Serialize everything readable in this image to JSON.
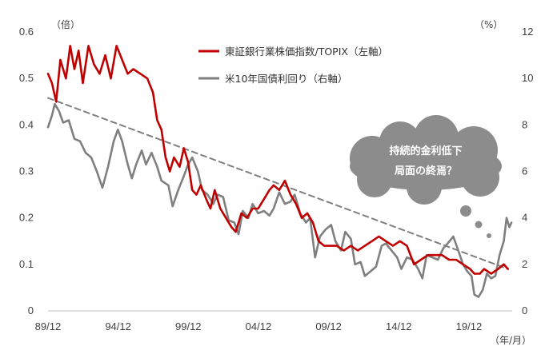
{
  "chart_data": {
    "type": "line",
    "left_axis_unit": "（倍）",
    "right_axis_unit": "（%）",
    "x_unit": "（年/月）",
    "x_ticks": [
      "89/12",
      "94/12",
      "99/12",
      "04/12",
      "09/12",
      "14/12",
      "19/12"
    ],
    "left_ticks": [
      "0",
      "0.1",
      "0.2",
      "0.3",
      "0.4",
      "0.5",
      "0.6"
    ],
    "right_ticks": [
      "0",
      "2",
      "4",
      "6",
      "8",
      "10",
      "12"
    ],
    "ylim_left": [
      0,
      0.6
    ],
    "ylim_right": [
      0,
      12
    ],
    "xlim": [
      1989.92,
      2023.0
    ],
    "series": [
      {
        "name": "東証銀行業株価指数/TOPIX（左軸）",
        "axis": "left",
        "color": "#c00000",
        "points": [
          [
            1989.92,
            0.51
          ],
          [
            1990.2,
            0.49
          ],
          [
            1990.5,
            0.45
          ],
          [
            1990.8,
            0.54
          ],
          [
            1991.2,
            0.5
          ],
          [
            1991.5,
            0.57
          ],
          [
            1991.8,
            0.52
          ],
          [
            1992.1,
            0.56
          ],
          [
            1992.4,
            0.49
          ],
          [
            1992.8,
            0.57
          ],
          [
            1993.2,
            0.53
          ],
          [
            1993.6,
            0.51
          ],
          [
            1994.0,
            0.55
          ],
          [
            1994.4,
            0.5
          ],
          [
            1994.8,
            0.57
          ],
          [
            1995.2,
            0.54
          ],
          [
            1995.6,
            0.51
          ],
          [
            1996.0,
            0.52
          ],
          [
            1996.5,
            0.51
          ],
          [
            1997.0,
            0.5
          ],
          [
            1997.4,
            0.47
          ],
          [
            1997.7,
            0.41
          ],
          [
            1998.0,
            0.39
          ],
          [
            1998.3,
            0.33
          ],
          [
            1998.6,
            0.3
          ],
          [
            1998.9,
            0.33
          ],
          [
            1999.3,
            0.31
          ],
          [
            1999.6,
            0.35
          ],
          [
            1999.9,
            0.32
          ],
          [
            2000.2,
            0.26
          ],
          [
            2000.5,
            0.25
          ],
          [
            2000.8,
            0.27
          ],
          [
            2001.2,
            0.24
          ],
          [
            2001.5,
            0.22
          ],
          [
            2001.8,
            0.26
          ],
          [
            2002.2,
            0.22
          ],
          [
            2002.6,
            0.2
          ],
          [
            2003.0,
            0.18
          ],
          [
            2003.3,
            0.17
          ],
          [
            2003.7,
            0.21
          ],
          [
            2004.1,
            0.2
          ],
          [
            2004.5,
            0.22
          ],
          [
            2004.9,
            0.22
          ],
          [
            2005.3,
            0.24
          ],
          [
            2005.7,
            0.26
          ],
          [
            2006.0,
            0.27
          ],
          [
            2006.4,
            0.26
          ],
          [
            2006.8,
            0.28
          ],
          [
            2007.2,
            0.25
          ],
          [
            2007.6,
            0.23
          ],
          [
            2008.0,
            0.2
          ],
          [
            2008.4,
            0.21
          ],
          [
            2008.8,
            0.19
          ],
          [
            2009.2,
            0.15
          ],
          [
            2009.6,
            0.14
          ],
          [
            2010.0,
            0.14
          ],
          [
            2010.5,
            0.14
          ],
          [
            2011.0,
            0.13
          ],
          [
            2011.5,
            0.14
          ],
          [
            2012.0,
            0.13
          ],
          [
            2012.5,
            0.14
          ],
          [
            2013.0,
            0.15
          ],
          [
            2013.5,
            0.16
          ],
          [
            2014.0,
            0.15
          ],
          [
            2014.5,
            0.14
          ],
          [
            2015.0,
            0.15
          ],
          [
            2015.5,
            0.14
          ],
          [
            2016.0,
            0.1
          ],
          [
            2016.5,
            0.11
          ],
          [
            2017.0,
            0.12
          ],
          [
            2017.5,
            0.12
          ],
          [
            2018.0,
            0.12
          ],
          [
            2018.5,
            0.11
          ],
          [
            2019.0,
            0.11
          ],
          [
            2019.5,
            0.1
          ],
          [
            2020.0,
            0.09
          ],
          [
            2020.3,
            0.08
          ],
          [
            2020.7,
            0.08
          ],
          [
            2021.0,
            0.09
          ],
          [
            2021.5,
            0.08
          ],
          [
            2022.0,
            0.09
          ],
          [
            2022.4,
            0.1
          ],
          [
            2022.7,
            0.09
          ]
        ]
      },
      {
        "name": "米10年国債利回り（右軸）",
        "axis": "right",
        "color": "#7f7f7f",
        "points": [
          [
            1989.92,
            7.9
          ],
          [
            1990.2,
            8.4
          ],
          [
            1990.4,
            8.9
          ],
          [
            1990.7,
            8.6
          ],
          [
            1991.0,
            8.1
          ],
          [
            1991.4,
            8.2
          ],
          [
            1991.8,
            7.4
          ],
          [
            1992.2,
            7.3
          ],
          [
            1992.6,
            6.8
          ],
          [
            1993.0,
            6.6
          ],
          [
            1993.4,
            6.0
          ],
          [
            1993.8,
            5.3
          ],
          [
            1994.2,
            6.2
          ],
          [
            1994.6,
            7.3
          ],
          [
            1994.9,
            7.8
          ],
          [
            1995.2,
            7.3
          ],
          [
            1995.6,
            6.3
          ],
          [
            1995.9,
            5.7
          ],
          [
            1996.2,
            6.3
          ],
          [
            1996.6,
            6.9
          ],
          [
            1996.9,
            6.3
          ],
          [
            1997.3,
            6.8
          ],
          [
            1997.7,
            6.2
          ],
          [
            1998.0,
            5.6
          ],
          [
            1998.5,
            5.4
          ],
          [
            1998.8,
            4.5
          ],
          [
            1999.2,
            5.2
          ],
          [
            1999.6,
            5.8
          ],
          [
            1999.9,
            6.3
          ],
          [
            2000.2,
            6.6
          ],
          [
            2000.6,
            6.0
          ],
          [
            2000.9,
            5.2
          ],
          [
            2001.3,
            5.0
          ],
          [
            2001.7,
            4.6
          ],
          [
            2002.0,
            5.0
          ],
          [
            2002.4,
            4.9
          ],
          [
            2002.8,
            3.9
          ],
          [
            2003.2,
            3.8
          ],
          [
            2003.5,
            3.3
          ],
          [
            2003.8,
            4.3
          ],
          [
            2004.2,
            4.0
          ],
          [
            2004.5,
            4.6
          ],
          [
            2004.9,
            4.2
          ],
          [
            2005.3,
            4.3
          ],
          [
            2005.7,
            4.1
          ],
          [
            2006.0,
            4.4
          ],
          [
            2006.4,
            5.1
          ],
          [
            2006.8,
            4.6
          ],
          [
            2007.2,
            4.7
          ],
          [
            2007.5,
            5.0
          ],
          [
            2007.9,
            4.2
          ],
          [
            2008.3,
            3.8
          ],
          [
            2008.6,
            4.0
          ],
          [
            2008.95,
            2.3
          ],
          [
            2009.3,
            3.2
          ],
          [
            2009.7,
            3.5
          ],
          [
            2010.1,
            3.7
          ],
          [
            2010.4,
            3.0
          ],
          [
            2010.8,
            2.6
          ],
          [
            2011.1,
            3.4
          ],
          [
            2011.5,
            3.1
          ],
          [
            2011.8,
            2.0
          ],
          [
            2012.2,
            2.1
          ],
          [
            2012.5,
            1.5
          ],
          [
            2012.9,
            1.7
          ],
          [
            2013.3,
            1.9
          ],
          [
            2013.7,
            2.8
          ],
          [
            2014.0,
            2.9
          ],
          [
            2014.4,
            2.6
          ],
          [
            2014.8,
            2.3
          ],
          [
            2015.1,
            1.8
          ],
          [
            2015.5,
            2.3
          ],
          [
            2015.9,
            2.2
          ],
          [
            2016.3,
            1.8
          ],
          [
            2016.6,
            1.4
          ],
          [
            2016.9,
            2.4
          ],
          [
            2017.3,
            2.3
          ],
          [
            2017.7,
            2.2
          ],
          [
            2018.1,
            2.7
          ],
          [
            2018.4,
            2.9
          ],
          [
            2018.8,
            3.2
          ],
          [
            2019.1,
            2.7
          ],
          [
            2019.5,
            2.0
          ],
          [
            2019.8,
            1.7
          ],
          [
            2020.1,
            1.5
          ],
          [
            2020.3,
            0.7
          ],
          [
            2020.6,
            0.6
          ],
          [
            2020.9,
            0.9
          ],
          [
            2021.2,
            1.6
          ],
          [
            2021.5,
            1.4
          ],
          [
            2021.8,
            1.5
          ],
          [
            2022.1,
            2.4
          ],
          [
            2022.4,
            3.0
          ],
          [
            2022.6,
            4.0
          ],
          [
            2022.8,
            3.6
          ],
          [
            2022.95,
            3.8
          ]
        ]
      },
      {
        "name": "trend",
        "axis": "left",
        "color": "#7f7f7f",
        "dashed": true,
        "points": [
          [
            1989.92,
            0.458
          ],
          [
            2022.7,
            0.09
          ]
        ]
      }
    ]
  },
  "callout": {
    "line1": "持続的金利低下",
    "line2": "局面の終焉？",
    "color": "#8c8c8c"
  }
}
